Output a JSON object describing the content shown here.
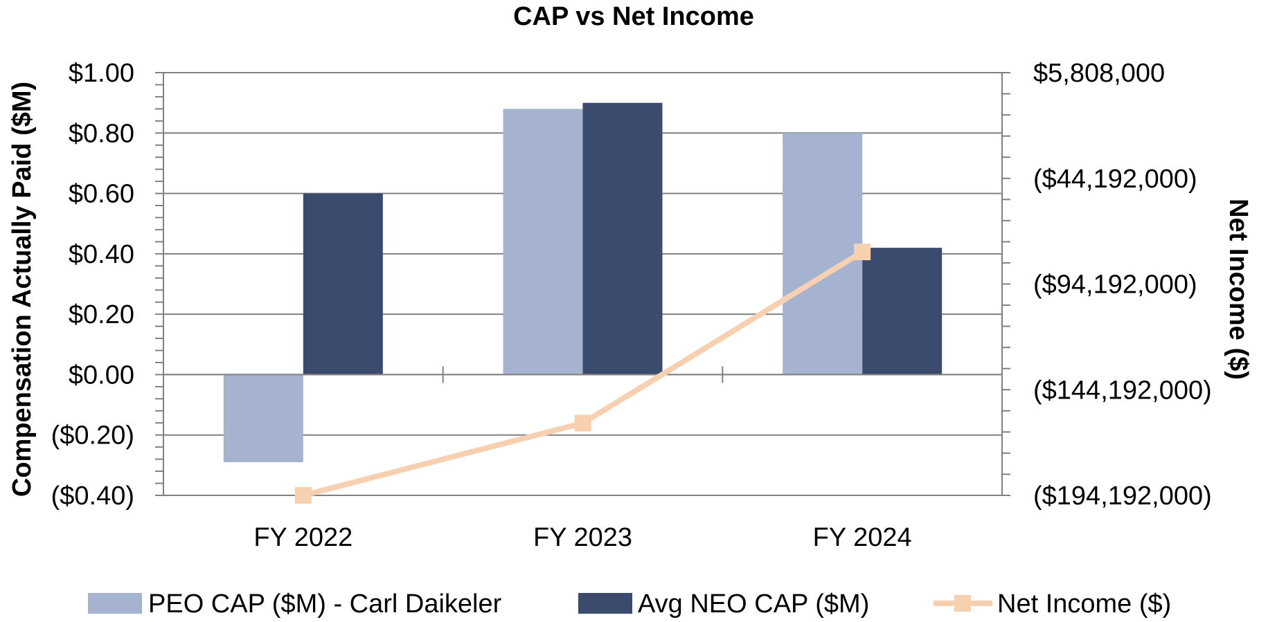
{
  "chart_data": {
    "type": "bar",
    "title": "CAP vs Net Income",
    "categories": [
      "FY 2022",
      "FY 2023",
      "FY 2024"
    ],
    "ylabel": "Compensation Actually Paid ($M)",
    "y2label": "Net Income ($)",
    "ylim": [
      -0.4,
      1.0
    ],
    "y_ticks": [
      1.0,
      0.8,
      0.6,
      0.4,
      0.2,
      0.0,
      -0.2,
      -0.4
    ],
    "y_tick_labels": [
      "$1.00",
      "$0.80",
      "$0.60",
      "$0.40",
      "$0.20",
      "$0.00",
      "($0.20)",
      "($0.40)"
    ],
    "y2lim": [
      -194192000,
      5808000
    ],
    "y2_ticks": [
      5808000,
      -44192000,
      -94192000,
      -144192000,
      -194192000
    ],
    "y2_tick_labels": [
      "$5,808,000",
      "($44,192,000)",
      "($94,192,000)",
      "($144,192,000)",
      "($194,192,000)"
    ],
    "grid": true,
    "legend_position": "bottom",
    "series": [
      {
        "name": "PEO CAP ($M) - Carl Daikeler",
        "kind": "bar",
        "axis": "left",
        "color": "#a5b3d0",
        "values": [
          -0.29,
          0.88,
          0.8
        ]
      },
      {
        "name": "Avg NEO CAP ($M)",
        "kind": "bar",
        "axis": "left",
        "color": "#3a4b6d",
        "values": [
          0.6,
          0.9,
          0.42
        ]
      },
      {
        "name": "Net Income ($)",
        "kind": "line",
        "axis": "right",
        "color": "#f7d0b0",
        "values": [
          -194192000,
          -160000000,
          -79000000
        ]
      }
    ]
  }
}
